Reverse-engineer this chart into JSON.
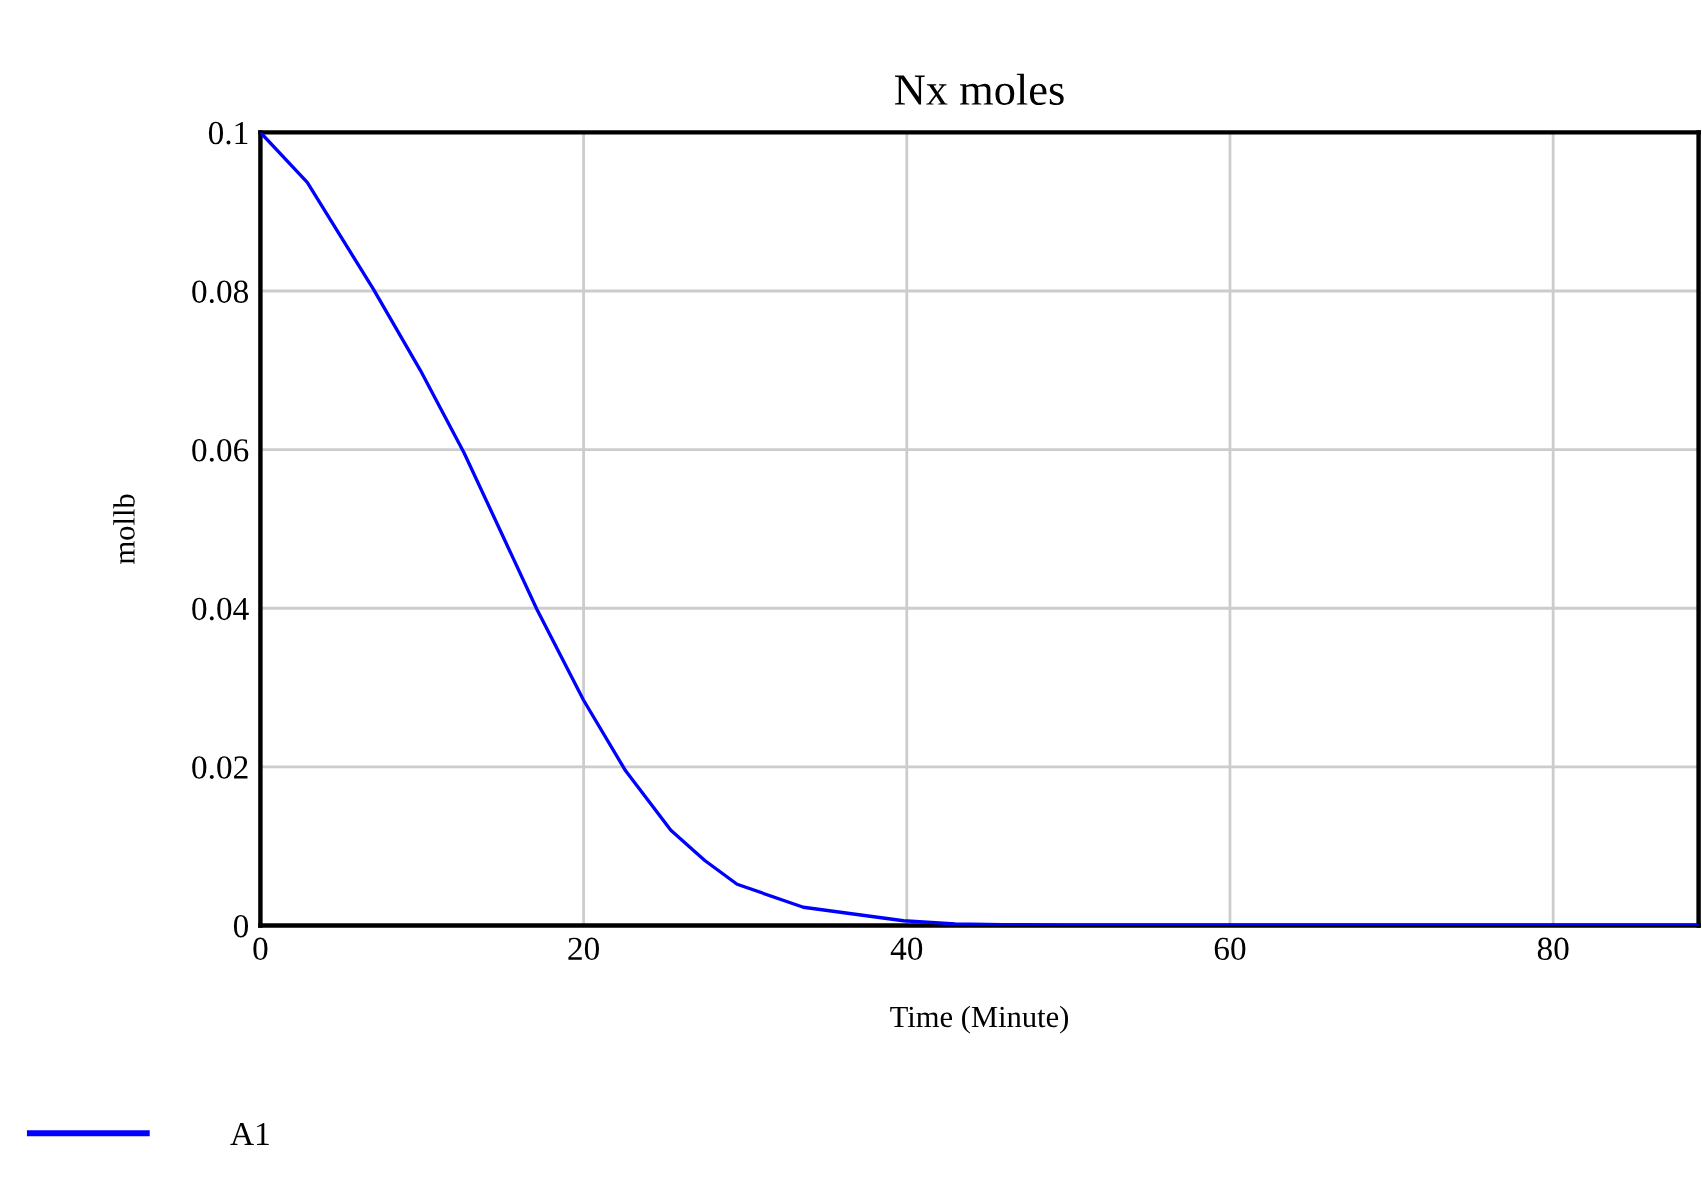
{
  "chart_data": {
    "type": "line",
    "title": "Nx moles",
    "xlabel": "Time (Minute)",
    "ylabel": "mollb",
    "x": [
      0,
      2.9,
      7.0,
      9.9,
      12.6,
      14.8,
      17.1,
      20,
      22.6,
      25.4,
      27.5,
      29.5,
      33.6,
      39.8,
      43,
      50,
      60,
      70,
      80,
      89
    ],
    "series": [
      {
        "name": "A1",
        "color": "#0000ff",
        "values": [
          0.1,
          0.0937,
          0.0802,
          0.07,
          0.0596,
          0.05,
          0.0399,
          0.0284,
          0.0195,
          0.012,
          0.0082,
          0.0052,
          0.0023,
          0.0006,
          0.0002,
          0,
          0,
          0,
          0,
          0
        ]
      }
    ],
    "xlim": [
      0,
      89
    ],
    "xticks": [
      0,
      20,
      40,
      60,
      80
    ],
    "ylim": [
      0,
      0.1
    ],
    "yticks": [
      0,
      0.02,
      0.04,
      0.06,
      0.08,
      0.1
    ],
    "grid": true,
    "legend": "bottom left",
    "marker": "none",
    "line_style": "solid"
  }
}
